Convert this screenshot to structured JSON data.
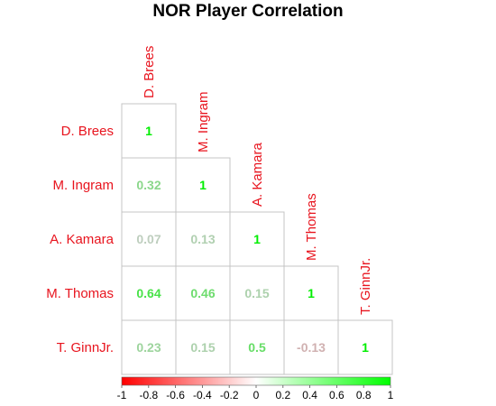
{
  "chart_data": {
    "type": "heatmap",
    "title": "NOR Player Correlation",
    "players": [
      "D. Brees",
      "M. Ingram",
      "A. Kamara",
      "M. Thomas",
      "T. GinnJr."
    ],
    "matrix": [
      [
        "1",
        null,
        null,
        null,
        null
      ],
      [
        "0.32",
        "1",
        null,
        null,
        null
      ],
      [
        "0.07",
        "0.13",
        "1",
        null,
        null
      ],
      [
        "0.64",
        "0.46",
        "0.15",
        "1",
        null
      ],
      [
        "0.23",
        "0.15",
        "0.5",
        "-0.13",
        "1"
      ]
    ],
    "colorbar": {
      "min": -1,
      "max": 1,
      "ticks": [
        "-1",
        "-0.8",
        "-0.6",
        "-0.4",
        "-0.2",
        "0",
        "0.2",
        "0.4",
        "0.6",
        "0.8",
        "1"
      ],
      "low_color": "#ff0000",
      "mid_color": "#ffffff",
      "high_color": "#00ff00"
    },
    "label_color": "#e8141e"
  }
}
